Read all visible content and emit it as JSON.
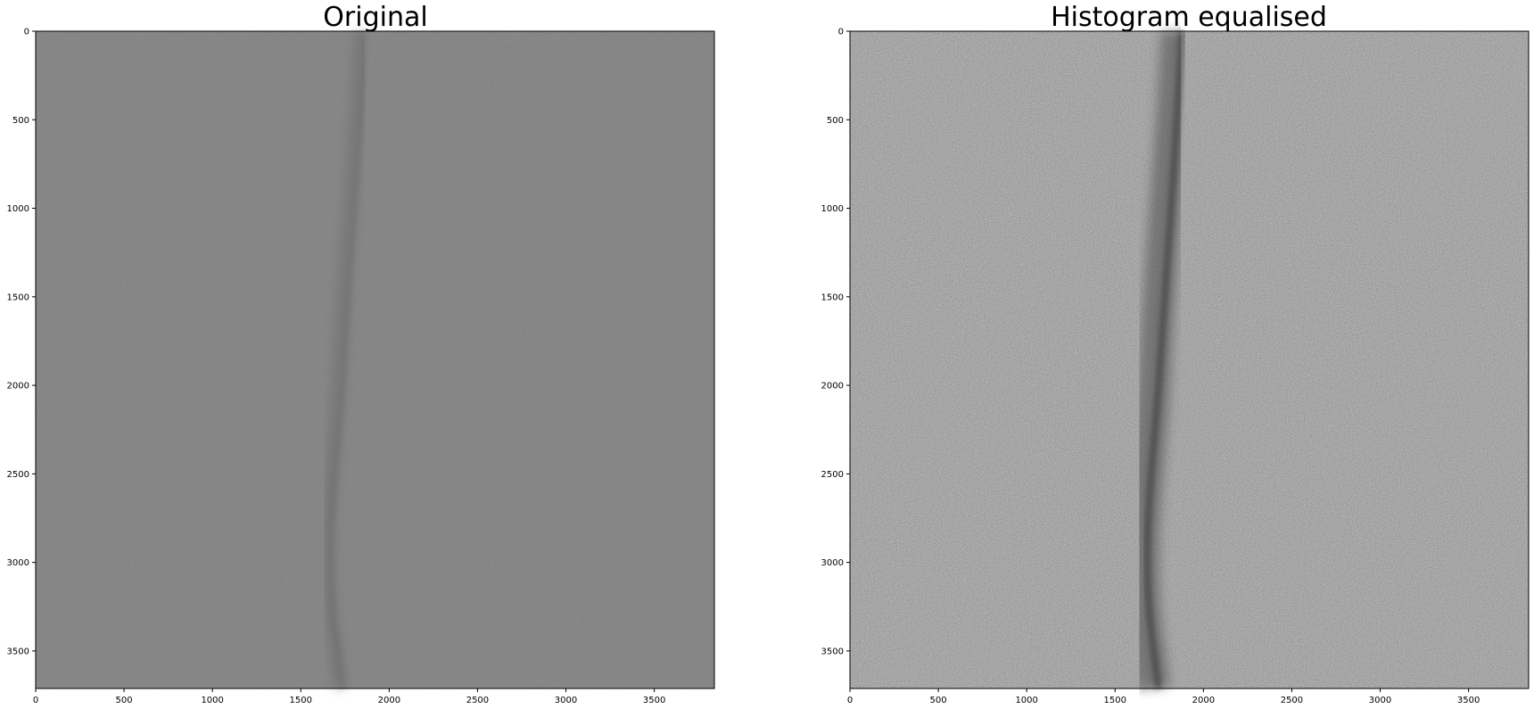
{
  "figure": {
    "panels": [
      {
        "id": "original",
        "title": "Original",
        "image": "grayscale noisy image, low contrast, faint vertical dark streak near x=1700-1900",
        "colors": {
          "base": "#7a7a7a",
          "noise_amplitude": 14,
          "streak": "#5f5f5f"
        },
        "x_ticks": [
          "0",
          "500",
          "1000",
          "1500",
          "2000",
          "2500",
          "3000",
          "3500"
        ],
        "y_ticks": [
          "0",
          "500",
          "1000",
          "1500",
          "2000",
          "2500",
          "3000",
          "3500"
        ]
      },
      {
        "id": "equalised",
        "title": "Histogram equalised",
        "image": "grayscale noisy image, high contrast after histogram equalisation, dark vertical streak near x=1600-2000",
        "colors": {
          "base": "#8a8a8a",
          "noise_amplitude": 60,
          "streak": "#3c3c3c"
        },
        "x_ticks": [
          "0",
          "500",
          "1000",
          "1500",
          "2000",
          "2500",
          "3000",
          "3500"
        ],
        "y_ticks": [
          "0",
          "500",
          "1000",
          "1500",
          "2000",
          "2500",
          "3000",
          "3500"
        ]
      }
    ],
    "axis_range": {
      "x": [
        0,
        3840
      ],
      "y": [
        0,
        3712
      ]
    }
  }
}
